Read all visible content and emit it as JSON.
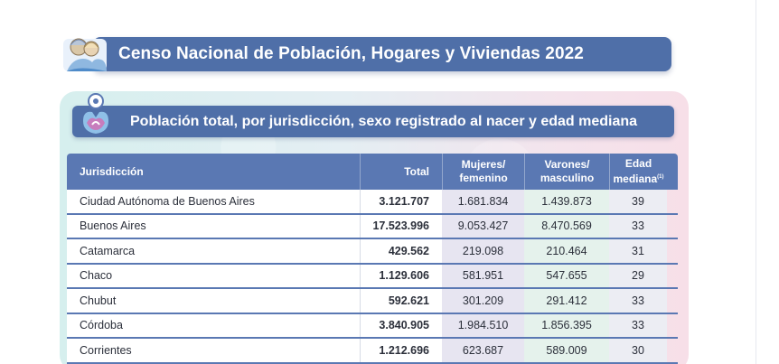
{
  "header": {
    "title": "Censo Nacional de Población, Hogares y Viviendas 2022",
    "icon": "census-people-icon"
  },
  "section": {
    "title": "Población total, por jurisdicción, sexo registrado al nacer y edad mediana",
    "icon": "location-pin-icon"
  },
  "table": {
    "columns": {
      "jurisdiccion": "Jurisdicción",
      "total": "Total",
      "mujeres_1": "Mujeres/",
      "mujeres_2": "femenino",
      "varones_1": "Varones/",
      "varones_2": "masculino",
      "edad_1": "Edad",
      "edad_2": "mediana",
      "edad_note": "(1)"
    },
    "rows": [
      {
        "jurisdiccion": "Ciudad Autónoma de Buenos Aires",
        "total": "3.121.707",
        "mujeres": "1.681.834",
        "varones": "1.439.873",
        "edad": "39"
      },
      {
        "jurisdiccion": "Buenos Aires",
        "total": "17.523.996",
        "mujeres": "9.053.427",
        "varones": "8.470.569",
        "edad": "33"
      },
      {
        "jurisdiccion": "Catamarca",
        "total": "429.562",
        "mujeres": "219.098",
        "varones": "210.464",
        "edad": "31"
      },
      {
        "jurisdiccion": "Chaco",
        "total": "1.129.606",
        "mujeres": "581.951",
        "varones": "547.655",
        "edad": "29"
      },
      {
        "jurisdiccion": "Chubut",
        "total": "592.621",
        "mujeres": "301.209",
        "varones": "291.412",
        "edad": "33"
      },
      {
        "jurisdiccion": "Córdoba",
        "total": "3.840.905",
        "mujeres": "1.984.510",
        "varones": "1.856.395",
        "edad": "33"
      },
      {
        "jurisdiccion": "Corrientes",
        "total": "1.212.696",
        "mujeres": "623.687",
        "varones": "589.009",
        "edad": "30"
      }
    ]
  },
  "colors": {
    "banner": "#4f6fa8",
    "table_header": "#5a78b3",
    "mujeres_column": "#e7e5f1",
    "varones_column": "#e5f2ec"
  }
}
